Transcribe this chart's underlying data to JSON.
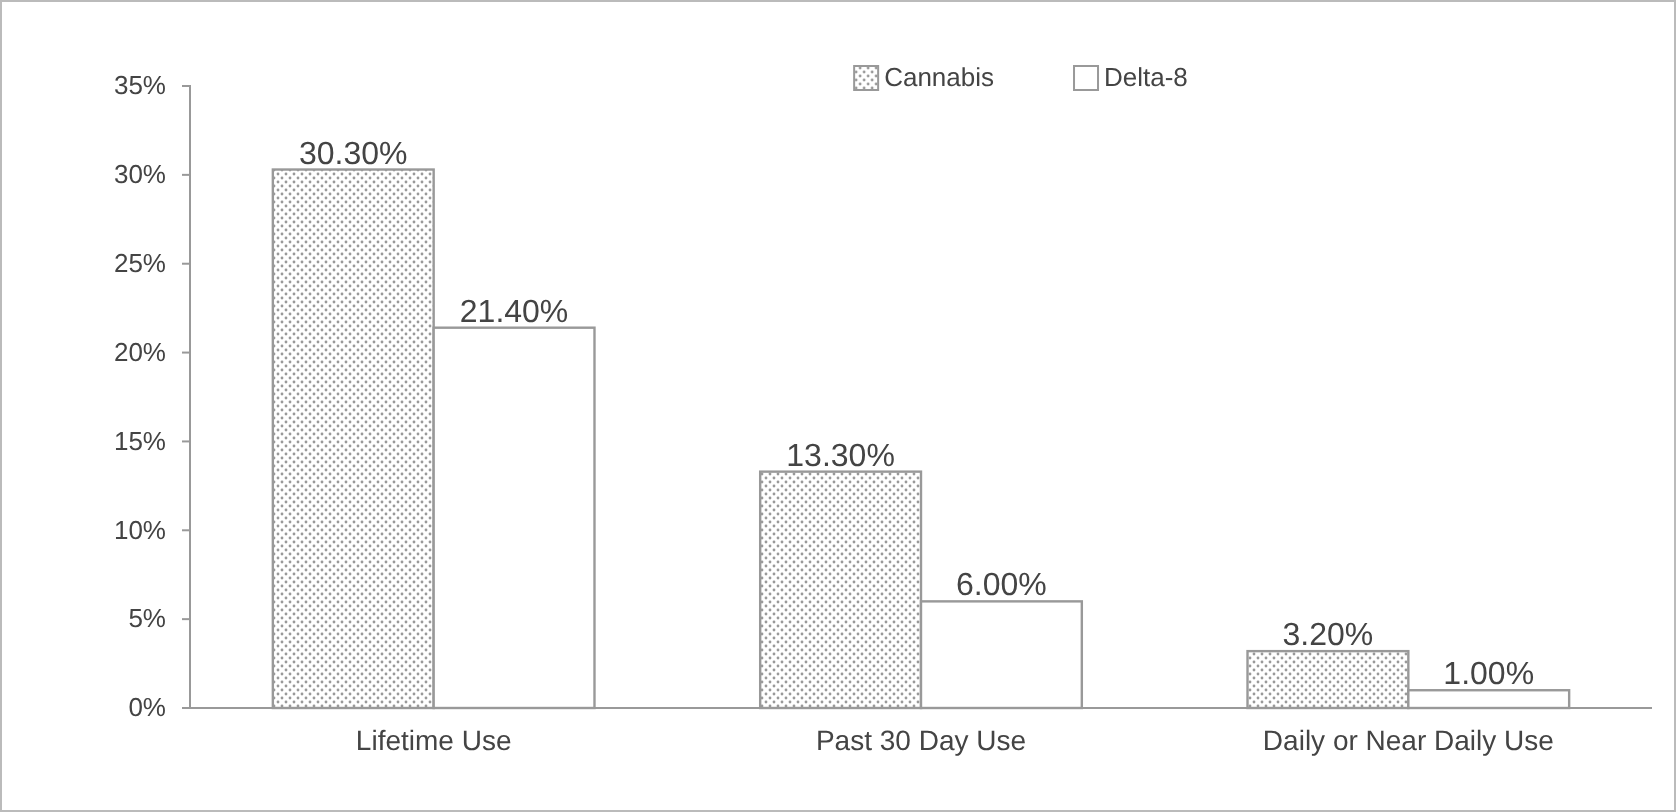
{
  "chart_data": {
    "type": "bar",
    "categories": [
      "Lifetime Use",
      "Past 30 Day Use",
      "Daily or Near Daily Use"
    ],
    "series": [
      {
        "name": "Cannabis",
        "color": "#999999",
        "values": [
          30.3,
          13.3,
          3.2
        ],
        "value_labels": [
          "30.30%",
          "13.30%",
          "3.20%"
        ]
      },
      {
        "name": "Delta-8",
        "color": "#999999",
        "values": [
          21.4,
          6.0,
          1.0
        ],
        "value_labels": [
          "21.40%",
          "6.00%",
          "1.00%"
        ]
      }
    ],
    "ylim": [
      0,
      35
    ],
    "yticks": [
      {
        "value": 0,
        "label": "0%"
      },
      {
        "value": 5,
        "label": "5%"
      },
      {
        "value": 10,
        "label": "10%"
      },
      {
        "value": 15,
        "label": "15%"
      },
      {
        "value": 20,
        "label": "20%"
      },
      {
        "value": 25,
        "label": "25%"
      },
      {
        "value": 30,
        "label": "30%"
      },
      {
        "value": 35,
        "label": "35%"
      }
    ],
    "grid": false,
    "legend": "top"
  }
}
